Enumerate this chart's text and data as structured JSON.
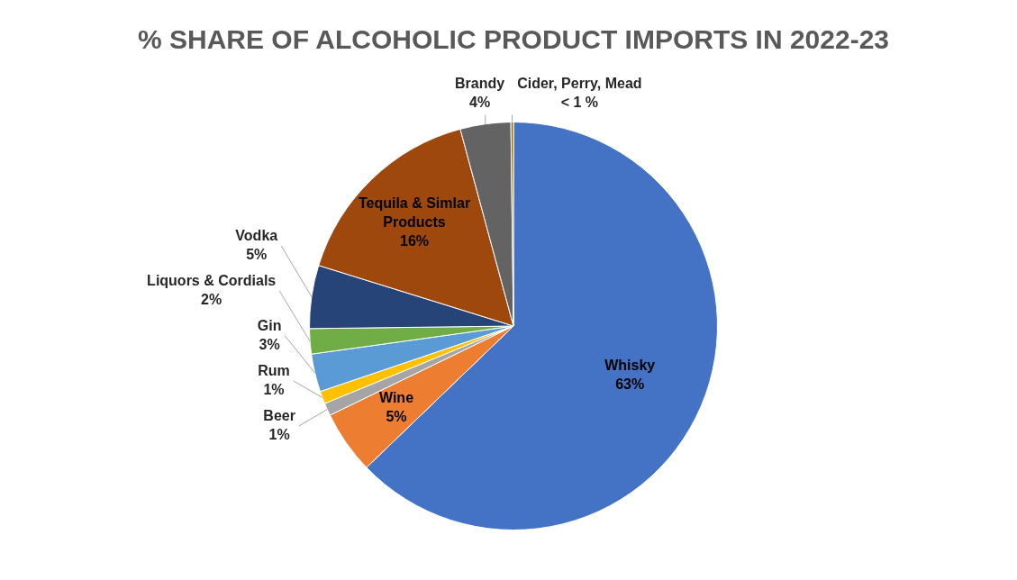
{
  "chart_data": {
    "type": "pie",
    "title": "% SHARE OF ALCOHOLIC PRODUCT IMPORTS IN 2022-23",
    "categories": [
      "Whisky",
      "Wine",
      "Beer",
      "Rum",
      "Gin",
      "Liquors & Cordials",
      "Vodka",
      "Tequila & Simlar Products",
      "Brandy",
      "Cider, Perry, Mead"
    ],
    "values": [
      62.8,
      5,
      1,
      1,
      3,
      2,
      5,
      16,
      4,
      0.2
    ],
    "value_labels": [
      "63%",
      "5%",
      "1%",
      "1%",
      "3%",
      "2%",
      "5%",
      "16%",
      "4%",
      "< 1 %"
    ],
    "colors": [
      "#4472c4",
      "#ed7d31",
      "#a5a5a5",
      "#ffc000",
      "#5b9bd5",
      "#70ad47",
      "#264478",
      "#9e480e",
      "#636363",
      "#997300"
    ],
    "legend": false
  }
}
